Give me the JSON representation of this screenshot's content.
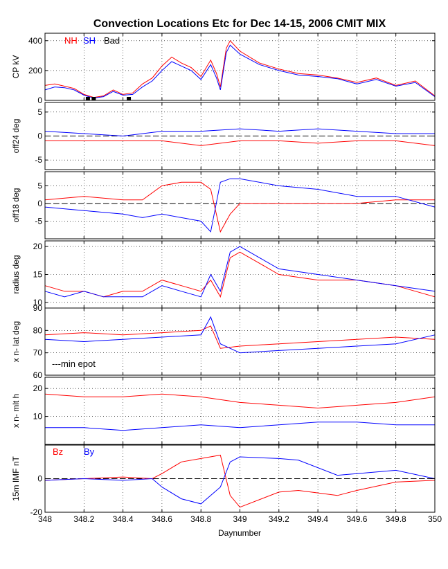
{
  "chart_data": {
    "type": "line",
    "title": "Convection Locations Etc for Dec 14-15, 2006 CMIT MIX",
    "xlabel": "Daynumber",
    "xlim": [
      348,
      350
    ],
    "xticks": [
      "348",
      "348.2",
      "348.4",
      "348.6",
      "348.8",
      "349",
      "349.2",
      "349.4",
      "349.6",
      "349.8",
      "350"
    ],
    "grid": true,
    "colors": {
      "nh": "#ff0000",
      "sh": "#0000ff",
      "bad": "#000000"
    },
    "panels": [
      {
        "ylabel": "CP kV",
        "ylim": [
          0,
          450
        ],
        "yticks": [
          "0",
          "200",
          "400"
        ],
        "legend": [
          "NH",
          "SH",
          "Bad"
        ],
        "series": [
          {
            "name": "NH",
            "color": "#ff0000",
            "x": [
              348,
              348.05,
              348.1,
              348.15,
              348.2,
              348.25,
              348.3,
              348.35,
              348.4,
              348.45,
              348.5,
              348.55,
              348.6,
              348.65,
              348.7,
              348.75,
              348.8,
              348.85,
              348.88,
              348.9,
              348.93,
              348.95,
              349,
              349.1,
              349.2,
              349.3,
              349.4,
              349.5,
              349.6,
              349.7,
              349.8,
              349.9,
              350
            ],
            "y": [
              100,
              110,
              95,
              80,
              40,
              20,
              30,
              70,
              40,
              50,
              110,
              150,
              230,
              290,
              250,
              220,
              160,
              270,
              180,
              90,
              350,
              400,
              330,
              250,
              210,
              180,
              170,
              150,
              120,
              150,
              100,
              130,
              30
            ]
          },
          {
            "name": "SH",
            "color": "#0000ff",
            "x": [
              348,
              348.05,
              348.1,
              348.15,
              348.2,
              348.25,
              348.3,
              348.35,
              348.4,
              348.45,
              348.5,
              348.55,
              348.6,
              348.65,
              348.7,
              348.75,
              348.8,
              348.85,
              348.88,
              348.9,
              348.93,
              348.95,
              349,
              349.1,
              349.2,
              349.3,
              349.4,
              349.5,
              349.6,
              349.7,
              349.8,
              349.9,
              350
            ],
            "y": [
              70,
              90,
              85,
              70,
              35,
              15,
              25,
              60,
              35,
              40,
              90,
              130,
              200,
              260,
              230,
              200,
              140,
              240,
              150,
              70,
              320,
              370,
              310,
              240,
              200,
              170,
              160,
              145,
              110,
              140,
              95,
              120,
              25
            ]
          }
        ],
        "bad_x": [
          348.22,
          348.25,
          348.43
        ]
      },
      {
        "ylabel": "off24 deg",
        "ylim": [
          -7,
          7
        ],
        "yticks": [
          "-5",
          "0",
          "5"
        ],
        "series": [
          {
            "name": "NH",
            "color": "#ff0000",
            "x": [
              348,
              348.2,
              348.4,
              348.6,
              348.8,
              349,
              349.2,
              349.4,
              349.6,
              349.8,
              350
            ],
            "y": [
              -1,
              -1,
              -1,
              -1,
              -2,
              -1,
              -1,
              -1.5,
              -1,
              -1,
              -2
            ]
          },
          {
            "name": "SH",
            "color": "#0000ff",
            "x": [
              348,
              348.2,
              348.4,
              348.6,
              348.8,
              349,
              349.2,
              349.4,
              349.6,
              349.8,
              350
            ],
            "y": [
              1,
              0.5,
              0,
              1,
              1,
              1.5,
              1,
              1.5,
              1,
              0.5,
              0.5
            ]
          }
        ]
      },
      {
        "ylabel": "off18 deg",
        "ylim": [
          -10,
          9
        ],
        "yticks": [
          "-5",
          "0",
          "5"
        ],
        "series": [
          {
            "name": "NH",
            "color": "#ff0000",
            "x": [
              348,
              348.2,
              348.4,
              348.5,
              348.6,
              348.7,
              348.8,
              348.85,
              348.9,
              348.95,
              349,
              349.2,
              349.4,
              349.6,
              349.8,
              350
            ],
            "y": [
              1,
              2,
              1,
              1,
              5,
              6,
              6,
              4,
              -8,
              -3,
              0,
              0,
              0,
              0,
              1,
              1
            ]
          },
          {
            "name": "SH",
            "color": "#0000ff",
            "x": [
              348,
              348.2,
              348.4,
              348.5,
              348.6,
              348.7,
              348.8,
              348.85,
              348.9,
              348.95,
              349,
              349.2,
              349.4,
              349.6,
              349.8,
              350
            ],
            "y": [
              -1,
              -2,
              -3,
              -4,
              -3,
              -4,
              -5,
              -8,
              6,
              7,
              7,
              5,
              4,
              2,
              2,
              -1
            ]
          }
        ]
      },
      {
        "ylabel": "radius deg",
        "ylim": [
          9,
          21
        ],
        "yticks": [
          "10",
          "15",
          "20"
        ],
        "series": [
          {
            "name": "NH",
            "color": "#ff0000",
            "x": [
              348,
              348.1,
              348.2,
              348.3,
              348.4,
              348.5,
              348.6,
              348.7,
              348.8,
              348.85,
              348.9,
              348.95,
              349,
              349.1,
              349.2,
              349.4,
              349.6,
              349.8,
              350
            ],
            "y": [
              13,
              12,
              12,
              11,
              12,
              12,
              14,
              13,
              12,
              14,
              11,
              18,
              19,
              17,
              15,
              14,
              14,
              13,
              11
            ]
          },
          {
            "name": "SH",
            "color": "#0000ff",
            "x": [
              348,
              348.1,
              348.2,
              348.3,
              348.4,
              348.5,
              348.6,
              348.7,
              348.8,
              348.85,
              348.9,
              348.95,
              349,
              349.1,
              349.2,
              349.4,
              349.6,
              349.8,
              350
            ],
            "y": [
              12,
              11,
              12,
              11,
              11,
              11,
              13,
              12,
              11,
              15,
              12,
              19,
              20,
              18,
              16,
              15,
              14,
              13,
              12
            ]
          }
        ]
      },
      {
        "ylabel": "x n-  lat deg",
        "ylim": [
          60,
          90
        ],
        "yticks": [
          "60",
          "70",
          "80",
          "90"
        ],
        "annotation": "---min epot",
        "series": [
          {
            "name": "NH",
            "color": "#ff0000",
            "x": [
              348,
              348.2,
              348.4,
              348.6,
              348.8,
              348.85,
              348.9,
              349,
              349.2,
              349.4,
              349.6,
              349.8,
              350
            ],
            "y": [
              78,
              79,
              78,
              79,
              80,
              82,
              72,
              73,
              74,
              75,
              76,
              77,
              76
            ]
          },
          {
            "name": "SH",
            "color": "#0000ff",
            "x": [
              348,
              348.2,
              348.4,
              348.6,
              348.8,
              348.85,
              348.9,
              349,
              349.2,
              349.4,
              349.6,
              349.8,
              350
            ],
            "y": [
              76,
              75,
              76,
              77,
              78,
              86,
              74,
              70,
              71,
              72,
              73,
              74,
              78
            ]
          }
        ]
      },
      {
        "ylabel": "x n-  mlt h",
        "ylim": [
          0,
          24
        ],
        "yticks": [
          "10",
          "20"
        ],
        "series": [
          {
            "name": "NH",
            "color": "#ff0000",
            "x": [
              348,
              348.2,
              348.4,
              348.6,
              348.8,
              349,
              349.2,
              349.4,
              349.6,
              349.8,
              350
            ],
            "y": [
              18,
              17,
              17,
              18,
              17,
              15,
              14,
              13,
              14,
              15,
              17
            ]
          },
          {
            "name": "SH",
            "color": "#0000ff",
            "x": [
              348,
              348.2,
              348.4,
              348.6,
              348.8,
              349,
              349.2,
              349.4,
              349.6,
              349.8,
              350
            ],
            "y": [
              6,
              6,
              5,
              6,
              7,
              6,
              7,
              8,
              8,
              7,
              7
            ]
          }
        ]
      },
      {
        "ylabel": "15m IMF nT",
        "ylim": [
          -20,
          20
        ],
        "yticks": [
          "-20",
          "0"
        ],
        "legend": [
          "Bz",
          "By"
        ],
        "series": [
          {
            "name": "Bz",
            "color": "#ff0000",
            "x": [
              348,
              348.2,
              348.4,
              348.55,
              348.6,
              348.7,
              348.8,
              348.9,
              348.95,
              349,
              349.2,
              349.3,
              349.5,
              349.6,
              349.8,
              350
            ],
            "y": [
              -1,
              0,
              1,
              0,
              3,
              10,
              12,
              14,
              -10,
              -17,
              -8,
              -7,
              -10,
              -7,
              -2,
              -1
            ]
          },
          {
            "name": "By",
            "color": "#0000ff",
            "x": [
              348,
              348.2,
              348.4,
              348.55,
              348.6,
              348.7,
              348.8,
              348.9,
              348.95,
              349,
              349.2,
              349.3,
              349.5,
              349.6,
              349.8,
              350
            ],
            "y": [
              -1,
              0,
              -1,
              0,
              -5,
              -12,
              -15,
              -5,
              10,
              13,
              12,
              11,
              2,
              3,
              5,
              0
            ]
          }
        ]
      }
    ]
  }
}
